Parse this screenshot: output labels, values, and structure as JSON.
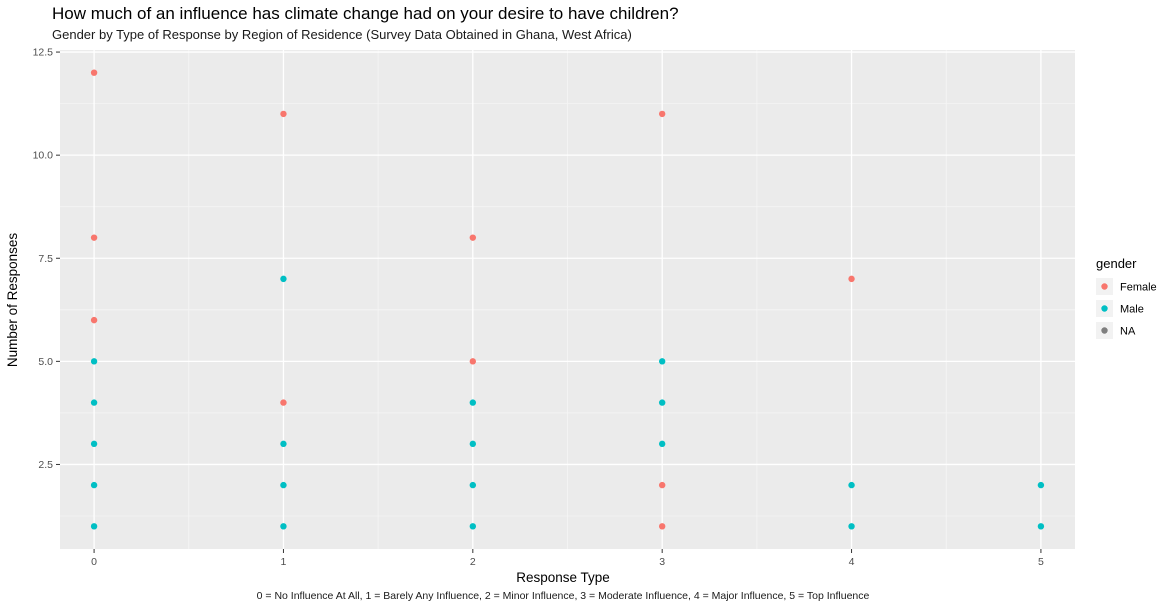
{
  "chart_data": {
    "type": "scatter",
    "title": "How much of an influence has climate change had on your desire to have children?",
    "subtitle": "Gender by Type of Response by Region of Residence (Survey Data Obtained in Ghana, West Africa)",
    "xlabel": "Response Type",
    "ylabel": "Number of Responses",
    "caption": "0 = No Influence At All, 1 = Barely Any Influence, 2 = Minor Influence, 3 = Moderate Influence, 4 = Major Influence, 5 = Top Influence",
    "xlim": [
      -0.18,
      5.18
    ],
    "ylim": [
      0.45,
      12.55
    ],
    "x_ticks": [
      0,
      1,
      2,
      3,
      4,
      5
    ],
    "x_tick_labels": [
      "0",
      "1",
      "2",
      "3",
      "4",
      "5"
    ],
    "y_ticks": [
      2.5,
      5.0,
      7.5,
      10.0,
      12.5
    ],
    "y_tick_labels": [
      "2.5",
      "5.0",
      "7.5",
      "10.0",
      "12.5"
    ],
    "grid": true,
    "legend": {
      "title": "gender",
      "position": "right"
    },
    "series": [
      {
        "name": "Female",
        "color": "#F8766D",
        "points": [
          [
            0,
            12
          ],
          [
            0,
            8
          ],
          [
            0,
            6
          ],
          [
            1,
            11
          ],
          [
            1,
            4
          ],
          [
            2,
            8
          ],
          [
            2,
            5
          ],
          [
            3,
            11
          ],
          [
            3,
            2
          ],
          [
            3,
            1
          ],
          [
            4,
            7
          ]
        ]
      },
      {
        "name": "Male",
        "color": "#00BFC4",
        "points": [
          [
            0,
            5
          ],
          [
            0,
            4
          ],
          [
            0,
            3
          ],
          [
            0,
            2
          ],
          [
            0,
            1
          ],
          [
            1,
            7
          ],
          [
            1,
            3
          ],
          [
            1,
            2
          ],
          [
            1,
            1
          ],
          [
            2,
            4
          ],
          [
            2,
            3
          ],
          [
            2,
            2
          ],
          [
            2,
            1
          ],
          [
            3,
            5
          ],
          [
            3,
            4
          ],
          [
            3,
            3
          ],
          [
            4,
            2
          ],
          [
            4,
            1
          ],
          [
            5,
            2
          ],
          [
            5,
            1
          ]
        ]
      },
      {
        "name": "NA",
        "color": "#7F7F7F",
        "points": []
      }
    ]
  }
}
